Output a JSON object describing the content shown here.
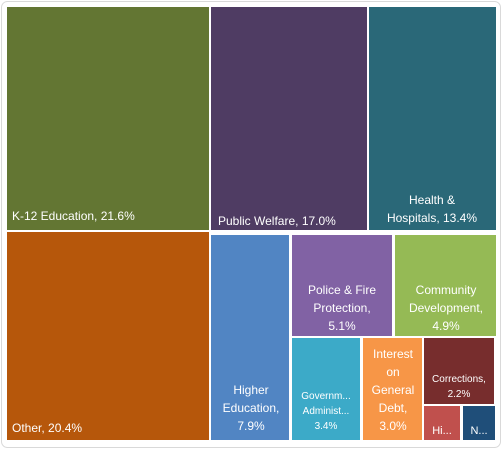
{
  "chart_data": {
    "type": "treemap",
    "title": "",
    "items": [
      {
        "name": "K-12 Education",
        "value": 21.6,
        "label": "K-12 Education, 21.6%",
        "color": "#637633"
      },
      {
        "name": "Public Welfare",
        "value": 17.0,
        "label": "Public Welfare, 17.0%",
        "color": "#4f3c63"
      },
      {
        "name": "Health & Hospitals",
        "value": 13.4,
        "label": "Health & Hospitals, 13.4%",
        "color": "#2a6878"
      },
      {
        "name": "Other",
        "value": 20.4,
        "label": "Other, 20.4%",
        "color": "#b6570b"
      },
      {
        "name": "Higher Education",
        "value": 7.9,
        "label": "Higher Education, 7.9%",
        "color": "#5185c3"
      },
      {
        "name": "Police & Fire Protection",
        "value": 5.1,
        "label": "Police & Fire Protection, 5.1%",
        "color": "#8162a4"
      },
      {
        "name": "Community Development",
        "value": 4.9,
        "label": "Community Development, 4.9%",
        "color": "#95ba55"
      },
      {
        "name": "Government Administration",
        "value": 3.4,
        "label": "Governm... Administ... 3.4%",
        "color": "#3caac8"
      },
      {
        "name": "Interest on General Debt",
        "value": 3.0,
        "label": "Interest on General Debt, 3.0%",
        "color": "#f79647"
      },
      {
        "name": "Corrections",
        "value": 2.2,
        "label": "Corrections, 2.2%",
        "color": "#772d2d"
      },
      {
        "name": "Highways",
        "value": 1.4,
        "label": "Hi...",
        "color": "#c0504d"
      },
      {
        "name": "Natural Resources",
        "value": 1.2,
        "label": "N...",
        "color": "#1f4e79"
      }
    ]
  }
}
